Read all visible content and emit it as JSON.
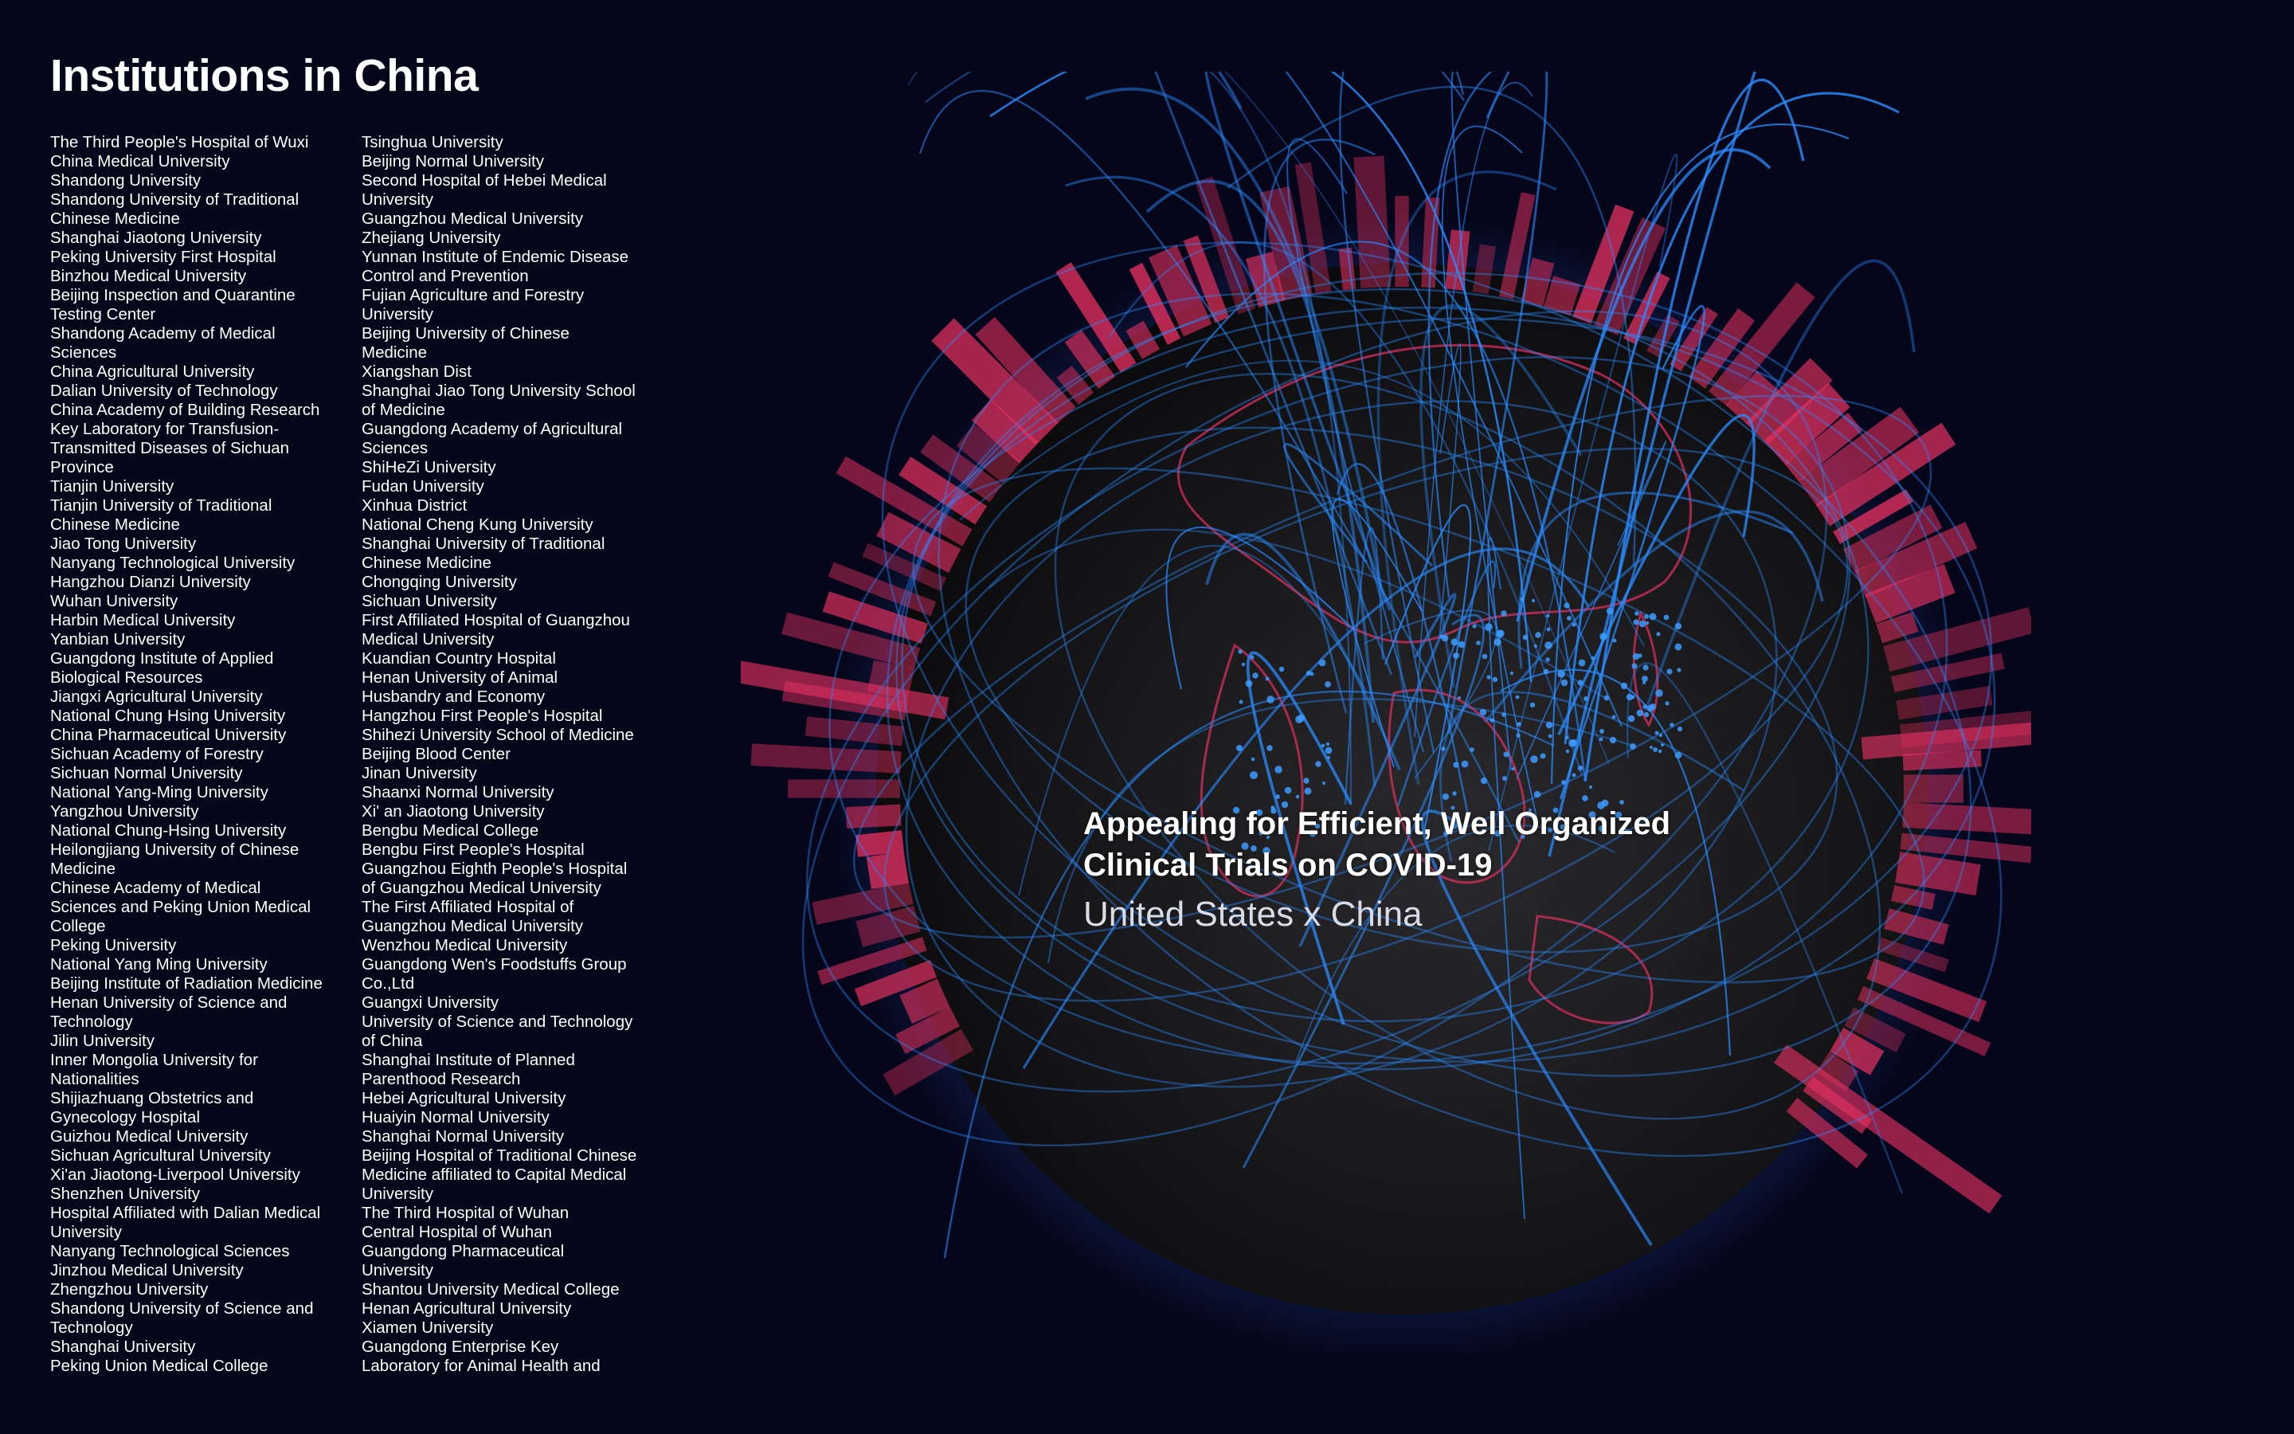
{
  "page": {
    "title": "Institutions in China",
    "overlay": {
      "heading_line1": "Appealing for Efficient, Well Organized",
      "heading_line2": "Clinical Trials on COVID-19",
      "subtitle": "United States x China"
    },
    "colors": {
      "background": "#05061a",
      "bar_red": "#e0305f",
      "arc_blue": "#2a8cff",
      "globe": "#141416"
    }
  },
  "institutions": {
    "column1": [
      "The Third People's Hospital of Wuxi",
      "China Medical University",
      "Shandong University",
      "Shandong University of Traditional",
      "Chinese Medicine",
      "Shanghai Jiaotong University",
      "Peking University First Hospital",
      "Binzhou Medical University",
      "Beijing Inspection and Quarantine",
      "Testing Center",
      "Shandong Academy of Medical",
      "Sciences",
      "China Agricultural University",
      "Dalian University of Technology",
      "China Academy of Building Research",
      "Key Laboratory for Transfusion-",
      "Transmitted Diseases of Sichuan",
      "Province",
      "Tianjin University",
      "Tianjin University of Traditional",
      "Chinese Medicine",
      "Jiao Tong University",
      "Nanyang Technological University",
      "Hangzhou Dianzi University",
      "Wuhan University",
      "Harbin Medical University",
      "Yanbian University",
      "Guangdong Institute of Applied",
      "Biological Resources",
      "Jiangxi Agricultural University",
      "National Chung Hsing University",
      "China Pharmaceutical University",
      "Sichuan Academy of Forestry",
      "Sichuan Normal University",
      "National Yang-Ming University",
      "Yangzhou University",
      "National Chung-Hsing University",
      "Heilongjiang University of Chinese",
      "Medicine",
      "Chinese Academy of Medical",
      "Sciences and Peking Union Medical",
      "College",
      "Peking University",
      "National Yang Ming University",
      "Beijing Institute of Radiation Medicine",
      "Henan University of Science and",
      "Technology",
      "Jilin University",
      "Inner Mongolia University for",
      "Nationalities",
      "Shijiazhuang Obstetrics and",
      "Gynecology Hospital",
      "Guizhou Medical University",
      "Sichuan Agricultural University",
      "Xi'an Jiaotong-Liverpool University",
      "Shenzhen University",
      "Hospital Affiliated with Dalian Medical",
      "University",
      "Nanyang Technological Sciences",
      "Jinzhou Medical University",
      "Zhengzhou University",
      "Shandong University of Science and",
      "Technology",
      "Shanghai University",
      "Peking Union Medical College"
    ],
    "column2": [
      "Tsinghua University",
      "Beijing Normal University",
      "Second Hospital of Hebei Medical",
      "University",
      "Guangzhou Medical University",
      "Zhejiang University",
      "Yunnan Institute of Endemic Disease",
      "Control and Prevention",
      "Fujian Agriculture and Forestry",
      "University",
      "Beijing University of Chinese",
      "Medicine",
      "Xiangshan Dist",
      "Shanghai Jiao Tong University School",
      "of Medicine",
      "Guangdong Academy of Agricultural",
      "Sciences",
      "ShiHeZi University",
      "Fudan University",
      "Xinhua District",
      "National Cheng Kung University",
      "Shanghai University of Traditional",
      "Chinese Medicine",
      "Chongqing University",
      "Sichuan University",
      "First Affiliated Hospital of Guangzhou",
      "Medical University",
      "Kuandian Country Hospital",
      "Henan University of Animal",
      "Husbandry and Economy",
      "Hangzhou First People's Hospital",
      "Shihezi University School of Medicine",
      "Beijing Blood Center",
      "Jinan University",
      "Shaanxi Normal University",
      "Xi' an Jiaotong University",
      "Bengbu Medical College",
      "Bengbu First People's Hospital",
      "Guangzhou Eighth People's Hospital",
      "of Guangzhou Medical University",
      "The First Affiliated Hospital of",
      "Guangzhou Medical University",
      "Wenzhou Medical University",
      "Guangdong Wen's Foodstuffs Group",
      "Co.,Ltd",
      "Guangxi University",
      "University of Science and Technology",
      "of China",
      "Shanghai Institute of Planned",
      "Parenthood Research",
      "Hebei Agricultural University",
      "Huaiyin Normal University",
      "Shanghai Normal University",
      "Beijing Hospital of Traditional Chinese",
      "Medicine affiliated to Capital Medical",
      "University",
      "The Third Hospital of Wuhan",
      "Central Hospital of Wuhan",
      "Guangdong Pharmaceutical",
      "University",
      "Shantou University Medical College",
      "Henan Agricultural University",
      "Xiamen University",
      "Guangdong Enterprise Key",
      "Laboratory for Animal Health and"
    ]
  }
}
